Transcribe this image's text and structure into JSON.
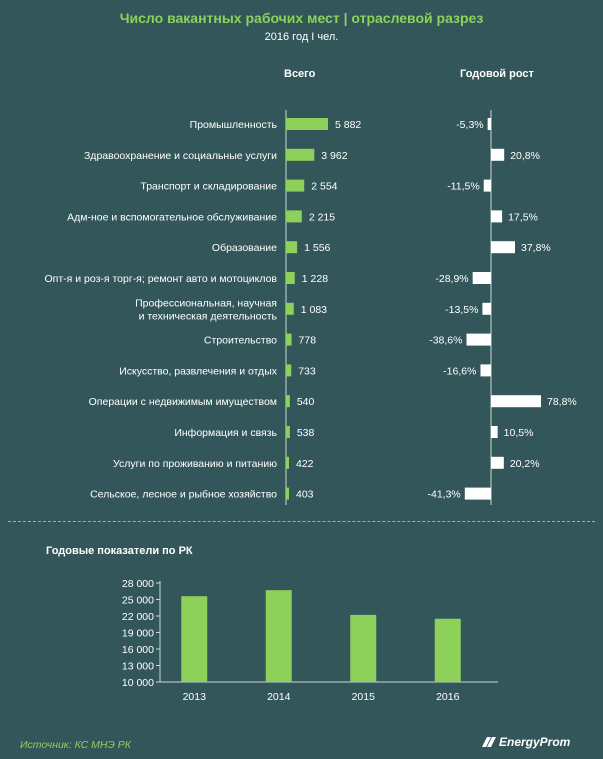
{
  "header": {
    "title": "Число вакантных рабочих мест | отраслевой разрез",
    "subtitle": "2016 год I чел."
  },
  "columns": {
    "total_label": "Всего",
    "growth_label": "Годовой рост"
  },
  "colors": {
    "bar_green": "#8ed15a",
    "bar_white": "#ffffff",
    "background": "#33565a",
    "accent_text": "#8ed15a"
  },
  "chart_data": [
    {
      "type": "bar",
      "orientation": "horizontal",
      "categories": [
        "Промышленность",
        "Здравоохранение и социальные услуги",
        "Транспорт и складирование",
        "Адм-ное и вспомогательное обслуживание",
        "Образование",
        "Опт-я и роз-я торг-я; ремонт авто и мотоциклов",
        "Профессиональная, научная\nи техническая деятельность",
        "Строительство",
        "Искусство, развлечения и отдых",
        "Операции с недвижимым имуществом",
        "Информация и связь",
        "Услуги по проживанию и питанию",
        "Сельское, лесное и рыбное хозяйство"
      ],
      "series": [
        {
          "name": "Всего",
          "values": [
            5882,
            3962,
            2554,
            2215,
            1556,
            1228,
            1083,
            778,
            733,
            540,
            538,
            422,
            403
          ],
          "labels": [
            "5 882",
            "3 962",
            "2 554",
            "2 215",
            "1 556",
            "1 228",
            "1 083",
            "778",
            "733",
            "540",
            "538",
            "422",
            "403"
          ]
        },
        {
          "name": "Годовой рост",
          "values": [
            -5.3,
            20.8,
            -11.5,
            17.5,
            37.8,
            -28.9,
            -13.5,
            -38.6,
            -16.6,
            78.8,
            10.5,
            20.2,
            -41.3
          ],
          "labels": [
            "-5,3%",
            "20,8%",
            "-11,5%",
            "17,5%",
            "37,8%",
            "-28,9%",
            "-13,5%",
            "-38,6%",
            "-16,6%",
            "78,8%",
            "10,5%",
            "20,2%",
            "-41,3%"
          ]
        }
      ]
    },
    {
      "type": "bar",
      "title": "Годовые показатели по РК",
      "categories": [
        "2013",
        "2014",
        "2015",
        "2016"
      ],
      "values": [
        25600,
        26700,
        22200,
        21500
      ],
      "ylim": [
        10000,
        28000
      ],
      "yticks": [
        10000,
        13000,
        16000,
        19000,
        22000,
        25000,
        28000
      ],
      "ytick_labels": [
        "10 000",
        "13 000",
        "16 000",
        "19 000",
        "22 000",
        "25 000",
        "28 000"
      ]
    }
  ],
  "footer": {
    "source": "Источник: КС МНЭ РК",
    "brand": "EnergyProm"
  }
}
